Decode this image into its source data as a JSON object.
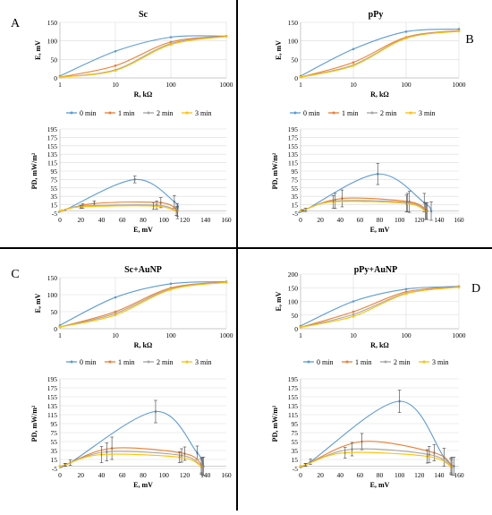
{
  "figure": {
    "colors": {
      "0 min": "#5b9bd5",
      "1 min": "#ed7d31",
      "2 min": "#a5a5a5",
      "3 min": "#ffc000",
      "grid": "#d9d9d9",
      "axis": "#bfbfbf",
      "error": "#595959",
      "divider": "#000000"
    },
    "legend_labels": [
      "0 min",
      "1 min",
      "2 min",
      "3 min"
    ]
  },
  "chart_data": [
    {
      "panel_letter": "A",
      "title": "Sc",
      "type": "line",
      "xscale": "log",
      "xlabel": "R, kΩ",
      "ylabel": "E, mV",
      "xlim": [
        1,
        1000
      ],
      "ylim": [
        0,
        150
      ],
      "xticks": [
        "1",
        "10",
        "100",
        "1000"
      ],
      "yticks": [
        "0",
        "50",
        "100",
        "150"
      ],
      "x": [
        1,
        10,
        100,
        1000
      ],
      "series": [
        {
          "name": "0 min",
          "values": [
            5,
            72,
            110,
            113
          ]
        },
        {
          "name": "1 min",
          "values": [
            2,
            33,
            97,
            113
          ]
        },
        {
          "name": "2 min",
          "values": [
            2,
            22,
            93,
            112
          ]
        },
        {
          "name": "3 min",
          "values": [
            2,
            20,
            90,
            112
          ]
        }
      ]
    },
    {
      "panel_letter": "B",
      "title": "pPy",
      "type": "line",
      "xscale": "log",
      "xlabel": "R, kΩ",
      "ylabel": "E, mV",
      "xlim": [
        1,
        1000
      ],
      "ylim": [
        0,
        150
      ],
      "xticks": [
        "1",
        "10",
        "100",
        "1000"
      ],
      "yticks": [
        "0",
        "50",
        "100",
        "150"
      ],
      "x": [
        1,
        10,
        100,
        1000
      ],
      "series": [
        {
          "name": "0 min",
          "values": [
            5,
            78,
            125,
            132
          ]
        },
        {
          "name": "1 min",
          "values": [
            2,
            42,
            110,
            128
          ]
        },
        {
          "name": "2 min",
          "values": [
            2,
            35,
            108,
            127
          ]
        },
        {
          "name": "3 min",
          "values": [
            2,
            33,
            107,
            126
          ]
        }
      ]
    },
    {
      "panel_letter": "A",
      "type": "line",
      "xlabel": "E, mV",
      "ylabel": "PD, mW/m²",
      "xlim": [
        0,
        160
      ],
      "ylim": [
        -5,
        195
      ],
      "xticks": [
        "0",
        "20",
        "40",
        "60",
        "80",
        "100",
        "120",
        "140",
        "160"
      ],
      "yticks": [
        "-5",
        "15",
        "35",
        "55",
        "75",
        "95",
        "115",
        "135",
        "155",
        "175",
        "195"
      ],
      "series": [
        {
          "name": "0 min",
          "x": [
            0,
            5,
            72,
            110,
            113
          ],
          "y": [
            0,
            3,
            75,
            22,
            0
          ],
          "err": [
            0,
            0,
            8,
            15,
            18
          ]
        },
        {
          "name": "1 min",
          "x": [
            0,
            2,
            33,
            97,
            113
          ],
          "y": [
            0,
            1,
            18,
            20,
            0
          ],
          "err": [
            0,
            0,
            6,
            12,
            12
          ]
        },
        {
          "name": "2 min",
          "x": [
            0,
            2,
            22,
            93,
            112
          ],
          "y": [
            0,
            1,
            12,
            14,
            0
          ],
          "err": [
            0,
            0,
            5,
            10,
            10
          ]
        },
        {
          "name": "3 min",
          "x": [
            0,
            2,
            20,
            90,
            112
          ],
          "y": [
            0,
            1,
            10,
            12,
            0
          ],
          "err": [
            0,
            0,
            4,
            8,
            10
          ]
        }
      ]
    },
    {
      "panel_letter": "B",
      "type": "line",
      "xlabel": "E, mV",
      "ylabel": "PD, mW/m²",
      "xlim": [
        0,
        160
      ],
      "ylim": [
        -5,
        195
      ],
      "xticks": [
        "0",
        "20",
        "40",
        "60",
        "80",
        "100",
        "120",
        "140",
        "160"
      ],
      "yticks": [
        "-5",
        "15",
        "35",
        "55",
        "75",
        "95",
        "115",
        "135",
        "155",
        "175",
        "195"
      ],
      "series": [
        {
          "name": "0 min",
          "x": [
            0,
            5,
            78,
            125,
            132
          ],
          "y": [
            0,
            3,
            88,
            20,
            0
          ],
          "err": [
            0,
            4,
            25,
            22,
            22
          ]
        },
        {
          "name": "1 min",
          "x": [
            0,
            2,
            42,
            110,
            128
          ],
          "y": [
            0,
            1,
            30,
            22,
            0
          ],
          "err": [
            0,
            2,
            20,
            25,
            20
          ]
        },
        {
          "name": "2 min",
          "x": [
            0,
            2,
            35,
            108,
            127
          ],
          "y": [
            0,
            1,
            24,
            20,
            0
          ],
          "err": [
            0,
            2,
            18,
            22,
            20
          ]
        },
        {
          "name": "3 min",
          "x": [
            0,
            2,
            33,
            107,
            126
          ],
          "y": [
            0,
            1,
            22,
            18,
            0
          ],
          "err": [
            0,
            2,
            15,
            20,
            20
          ]
        }
      ]
    },
    {
      "panel_letter": "C",
      "title": "Sc+AuNP",
      "type": "line",
      "xscale": "log",
      "xlabel": "R, kΩ",
      "ylabel": "E, mV",
      "xlim": [
        1,
        1000
      ],
      "ylim": [
        0,
        150
      ],
      "xticks": [
        "1",
        "10",
        "100",
        "1000"
      ],
      "yticks": [
        "0",
        "50",
        "100",
        "150"
      ],
      "x": [
        1,
        10,
        100,
        1000
      ],
      "series": [
        {
          "name": "0 min",
          "values": [
            10,
            92,
            132,
            138
          ]
        },
        {
          "name": "1 min",
          "values": [
            5,
            50,
            120,
            137
          ]
        },
        {
          "name": "2 min",
          "values": [
            5,
            45,
            117,
            136
          ]
        },
        {
          "name": "3 min",
          "values": [
            5,
            40,
            115,
            136
          ]
        }
      ]
    },
    {
      "panel_letter": "D",
      "title": "pPy+AuNP",
      "type": "line",
      "xscale": "log",
      "xlabel": "R, kΩ",
      "ylabel": "E, mV",
      "xlim": [
        1,
        1000
      ],
      "ylim": [
        0,
        200
      ],
      "xticks": [
        "1",
        "10",
        "100",
        "1000"
      ],
      "yticks": [
        "0",
        "50",
        "100",
        "150",
        "200"
      ],
      "x": [
        1,
        10,
        100,
        1000
      ],
      "series": [
        {
          "name": "0 min",
          "values": [
            10,
            100,
            145,
            155
          ]
        },
        {
          "name": "1 min",
          "values": [
            5,
            62,
            135,
            153
          ]
        },
        {
          "name": "2 min",
          "values": [
            5,
            52,
            130,
            152
          ]
        },
        {
          "name": "3 min",
          "values": [
            5,
            45,
            128,
            152
          ]
        }
      ]
    },
    {
      "panel_letter": "C",
      "type": "line",
      "xlabel": "E, mV",
      "ylabel": "PD, mW/m²",
      "xlim": [
        0,
        160
      ],
      "ylim": [
        -5,
        195
      ],
      "xticks": [
        "0",
        "20",
        "40",
        "60",
        "80",
        "100",
        "120",
        "140",
        "160"
      ],
      "yticks": [
        "-5",
        "15",
        "35",
        "55",
        "75",
        "95",
        "115",
        "135",
        "155",
        "175",
        "195"
      ],
      "series": [
        {
          "name": "0 min",
          "x": [
            0,
            10,
            92,
            132,
            138
          ],
          "y": [
            0,
            8,
            122,
            30,
            0
          ],
          "err": [
            0,
            6,
            25,
            15,
            20
          ]
        },
        {
          "name": "1 min",
          "x": [
            0,
            5,
            50,
            120,
            137
          ],
          "y": [
            0,
            3,
            40,
            28,
            0
          ],
          "err": [
            0,
            3,
            25,
            15,
            20
          ]
        },
        {
          "name": "2 min",
          "x": [
            0,
            5,
            45,
            117,
            136
          ],
          "y": [
            0,
            3,
            32,
            24,
            0
          ],
          "err": [
            0,
            3,
            20,
            15,
            18
          ]
        },
        {
          "name": "3 min",
          "x": [
            0,
            5,
            40,
            115,
            136
          ],
          "y": [
            0,
            3,
            26,
            20,
            0
          ],
          "err": [
            0,
            3,
            18,
            12,
            15
          ]
        }
      ]
    },
    {
      "panel_letter": "D",
      "type": "line",
      "xlabel": "E, mV",
      "ylabel": "PD, mW/m²",
      "xlim": [
        0,
        160
      ],
      "ylim": [
        -5,
        195
      ],
      "xticks": [
        "0",
        "20",
        "40",
        "60",
        "80",
        "100",
        "120",
        "140",
        "160"
      ],
      "yticks": [
        "-5",
        "15",
        "35",
        "55",
        "75",
        "95",
        "115",
        "135",
        "155",
        "175",
        "195"
      ],
      "series": [
        {
          "name": "0 min",
          "x": [
            0,
            10,
            100,
            145,
            155
          ],
          "y": [
            0,
            10,
            145,
            20,
            0
          ],
          "err": [
            0,
            6,
            25,
            20,
            20
          ]
        },
        {
          "name": "1 min",
          "x": [
            0,
            5,
            62,
            135,
            153
          ],
          "y": [
            0,
            3,
            55,
            30,
            0
          ],
          "err": [
            0,
            3,
            18,
            18,
            20
          ]
        },
        {
          "name": "2 min",
          "x": [
            0,
            5,
            52,
            130,
            152
          ],
          "y": [
            0,
            3,
            38,
            26,
            0
          ],
          "err": [
            0,
            3,
            15,
            18,
            18
          ]
        },
        {
          "name": "3 min",
          "x": [
            0,
            5,
            45,
            128,
            152
          ],
          "y": [
            0,
            3,
            30,
            22,
            0
          ],
          "err": [
            0,
            3,
            12,
            15,
            15
          ]
        }
      ]
    }
  ]
}
